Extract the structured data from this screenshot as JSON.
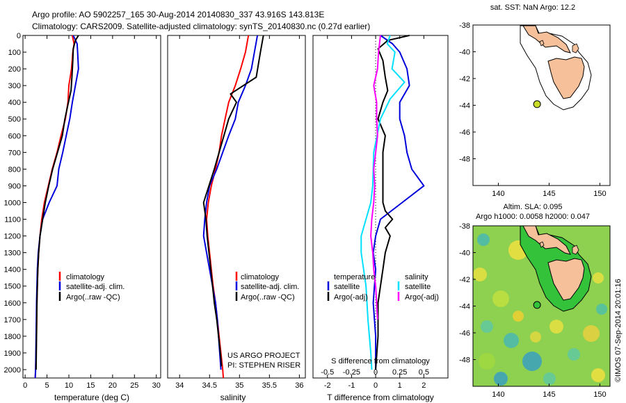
{
  "header": {
    "line1": "Argo profile: AO 5902257_165 30-Aug-2014 20140830_337 43.916S 143.813E",
    "line2": "Climatology: CARS2009. Satellite-adjusted climatology: synTS_20140830.nc (0.27d earlier)"
  },
  "credits": {
    "project": "US ARGO PROJECT",
    "pi": "PI: STEPHEN RISER",
    "timestamp": "©IMOS 07-Sep-2014 20:01:16"
  },
  "colors": {
    "climatology": "#ff0000",
    "satellite": "#0000dd",
    "argo": "#000000",
    "sal_satellite": "#00e0ff",
    "sal_argo": "#ff00ff",
    "land": "#f5c09a",
    "float": "#c8dc28"
  },
  "chart_data": [
    {
      "type": "line",
      "name": "temperature-panel",
      "xlabel": "temperature (deg C)",
      "ylabel": "",
      "xlim": [
        -0.5,
        31
      ],
      "ylim": [
        2050,
        0
      ],
      "xticks": [
        0,
        5,
        10,
        15,
        20,
        25,
        30
      ],
      "yticks": [
        0,
        100,
        200,
        300,
        400,
        500,
        600,
        700,
        800,
        900,
        1000,
        1100,
        1200,
        1300,
        1400,
        1500,
        1600,
        1700,
        1800,
        1900,
        2000
      ],
      "legend": [
        "climatology",
        "satellite-adj. clim.",
        "Argo(..raw -QC)"
      ],
      "series": [
        {
          "name": "climatology",
          "color": "#ff0000",
          "points": [
            [
              10.8,
              0
            ],
            [
              11.2,
              50
            ],
            [
              10.9,
              100
            ],
            [
              10.6,
              200
            ],
            [
              10.0,
              300
            ],
            [
              9.8,
              400
            ],
            [
              9.2,
              500
            ],
            [
              8.2,
              600
            ],
            [
              7.3,
              700
            ],
            [
              6.2,
              800
            ],
            [
              5.3,
              900
            ],
            [
              4.4,
              1000
            ],
            [
              3.8,
              1100
            ],
            [
              3.4,
              1200
            ],
            [
              3.1,
              1300
            ],
            [
              2.9,
              1400
            ],
            [
              2.8,
              1500
            ],
            [
              2.7,
              1600
            ],
            [
              2.6,
              1800
            ],
            [
              2.4,
              2000
            ],
            [
              2.3,
              2050
            ]
          ]
        },
        {
          "name": "satellite-adj. clim.",
          "color": "#0000dd",
          "points": [
            [
              11.0,
              0
            ],
            [
              11.9,
              50
            ],
            [
              12.0,
              100
            ],
            [
              12.2,
              200
            ],
            [
              11.5,
              300
            ],
            [
              10.8,
              400
            ],
            [
              10.2,
              500
            ],
            [
              9.4,
              600
            ],
            [
              8.6,
              700
            ],
            [
              7.7,
              800
            ],
            [
              7.3,
              900
            ],
            [
              5.5,
              1000
            ],
            [
              4.0,
              1100
            ],
            [
              3.4,
              1200
            ],
            [
              3.0,
              1300
            ],
            [
              2.8,
              1400
            ],
            [
              2.7,
              1500
            ],
            [
              2.6,
              1600
            ],
            [
              2.5,
              1800
            ],
            [
              2.4,
              2000
            ],
            [
              2.3,
              2050
            ]
          ]
        },
        {
          "name": "Argo(..raw -QC)",
          "color": "#000000",
          "points": [
            [
              12.2,
              0
            ],
            [
              11.5,
              30
            ],
            [
              11.0,
              80
            ],
            [
              10.9,
              150
            ],
            [
              10.7,
              250
            ],
            [
              10.5,
              330
            ],
            [
              9.9,
              400
            ],
            [
              9.1,
              500
            ],
            [
              8.5,
              600
            ],
            [
              7.4,
              700
            ],
            [
              6.3,
              800
            ],
            [
              5.4,
              900
            ],
            [
              4.6,
              1000
            ],
            [
              4.0,
              1100
            ],
            [
              3.4,
              1200
            ],
            [
              3.1,
              1300
            ],
            [
              2.9,
              1400
            ],
            [
              2.8,
              1500
            ],
            [
              2.7,
              1600
            ],
            [
              2.6,
              1800
            ],
            [
              2.5,
              2000
            ]
          ]
        }
      ]
    },
    {
      "type": "line",
      "name": "salinity-panel",
      "xlabel": "salinity",
      "ylabel": "",
      "xlim": [
        33.8,
        36.1
      ],
      "ylim": [
        2050,
        0
      ],
      "xticks": [
        34,
        34.5,
        35,
        35.5,
        36
      ],
      "legend": [
        "climatology",
        "satellite-adj. clim.",
        "Argo(..raw -QC)"
      ],
      "series": [
        {
          "name": "climatology",
          "color": "#ff0000",
          "points": [
            [
              35.15,
              0
            ],
            [
              35.1,
              100
            ],
            [
              35.02,
              200
            ],
            [
              34.93,
              300
            ],
            [
              34.82,
              400
            ],
            [
              34.76,
              500
            ],
            [
              34.7,
              600
            ],
            [
              34.66,
              700
            ],
            [
              34.6,
              800
            ],
            [
              34.53,
              900
            ],
            [
              34.48,
              1000
            ],
            [
              34.45,
              1100
            ],
            [
              34.47,
              1200
            ],
            [
              34.5,
              1300
            ],
            [
              34.53,
              1400
            ],
            [
              34.56,
              1500
            ],
            [
              34.6,
              1600
            ],
            [
              34.63,
              1700
            ],
            [
              34.66,
              1800
            ],
            [
              34.69,
              1900
            ],
            [
              34.72,
              2000
            ],
            [
              34.73,
              2050
            ]
          ]
        },
        {
          "name": "satellite-adj. clim.",
          "color": "#0000dd",
          "points": [
            [
              35.3,
              0
            ],
            [
              35.25,
              100
            ],
            [
              35.2,
              200
            ],
            [
              35.1,
              300
            ],
            [
              34.98,
              400
            ],
            [
              34.93,
              500
            ],
            [
              34.82,
              600
            ],
            [
              34.72,
              700
            ],
            [
              34.62,
              800
            ],
            [
              34.5,
              900
            ],
            [
              34.45,
              1000
            ],
            [
              34.42,
              1100
            ],
            [
              34.4,
              1200
            ],
            [
              34.45,
              1300
            ],
            [
              34.5,
              1400
            ],
            [
              34.55,
              1500
            ],
            [
              34.6,
              1600
            ],
            [
              34.63,
              1700
            ],
            [
              34.65,
              1800
            ],
            [
              34.67,
              1900
            ],
            [
              34.69,
              2000
            ]
          ]
        },
        {
          "name": "Argo(..raw -QC)",
          "color": "#000000",
          "points": [
            [
              35.4,
              0
            ],
            [
              35.35,
              100
            ],
            [
              35.28,
              250
            ],
            [
              34.85,
              350
            ],
            [
              34.95,
              400
            ],
            [
              34.82,
              500
            ],
            [
              34.74,
              600
            ],
            [
              34.66,
              700
            ],
            [
              34.58,
              800
            ],
            [
              34.49,
              900
            ],
            [
              34.4,
              1000
            ],
            [
              34.44,
              1100
            ],
            [
              34.46,
              1200
            ],
            [
              34.49,
              1300
            ],
            [
              34.52,
              1400
            ],
            [
              34.55,
              1500
            ],
            [
              34.58,
              1600
            ],
            [
              34.62,
              1700
            ],
            [
              34.65,
              1800
            ],
            [
              34.68,
              1900
            ],
            [
              34.7,
              1980
            ]
          ]
        }
      ]
    },
    {
      "type": "line",
      "name": "difference-panel",
      "xlabel": "T difference from climatology",
      "top_axis_label": "S difference from climatology",
      "xlim": [
        -2.6,
        3.0
      ],
      "ylim": [
        2050,
        0
      ],
      "xticks": [
        -2,
        -1,
        0,
        1,
        2
      ],
      "s_ticks": [
        "-0.5",
        "-0.25",
        "0",
        "0.25",
        "0.5"
      ],
      "legend_titles": [
        "temperature",
        "salinity"
      ],
      "legend": [
        "satellite",
        "Argo(-adj)",
        "satellite",
        "Argo(-adj)"
      ],
      "series": [
        {
          "name": "temperature satellite",
          "color": "#0000dd",
          "points": [
            [
              0.2,
              0
            ],
            [
              0.7,
              50
            ],
            [
              1.0,
              100
            ],
            [
              1.3,
              200
            ],
            [
              1.4,
              300
            ],
            [
              1.0,
              400
            ],
            [
              1.0,
              500
            ],
            [
              1.2,
              600
            ],
            [
              1.3,
              700
            ],
            [
              1.5,
              800
            ],
            [
              2.0,
              900
            ],
            [
              1.1,
              1000
            ],
            [
              0.2,
              1100
            ],
            [
              0.0,
              1200
            ],
            [
              -0.1,
              1300
            ],
            [
              0.0,
              1400
            ],
            [
              -0.1,
              1600
            ],
            [
              0.0,
              1800
            ],
            [
              0.0,
              2000
            ]
          ]
        },
        {
          "name": "temperature Argo(-adj)",
          "color": "#000000",
          "points": [
            [
              1.4,
              0
            ],
            [
              0.5,
              30
            ],
            [
              0.1,
              80
            ],
            [
              0.3,
              150
            ],
            [
              0.4,
              250
            ],
            [
              0.5,
              330
            ],
            [
              0.3,
              400
            ],
            [
              0.1,
              500
            ],
            [
              0.4,
              600
            ],
            [
              0.3,
              700
            ],
            [
              0.3,
              800
            ],
            [
              0.3,
              900
            ],
            [
              0.3,
              1000
            ],
            [
              0.4,
              1050
            ],
            [
              0.7,
              1100
            ],
            [
              0.4,
              1150
            ],
            [
              0.6,
              1200
            ],
            [
              0.4,
              1300
            ],
            [
              0.3,
              1400
            ],
            [
              0.2,
              1500
            ],
            [
              0.1,
              1600
            ],
            [
              0.1,
              1800
            ],
            [
              0.0,
              2000
            ]
          ]
        },
        {
          "name": "salinity satellite",
          "color": "#00e0ff",
          "points": [
            [
              0.15,
              0
            ],
            [
              0.12,
              50
            ],
            [
              0.2,
              100
            ],
            [
              0.17,
              200
            ],
            [
              0.3,
              280
            ],
            [
              0.15,
              380
            ],
            [
              0.05,
              500
            ],
            [
              -0.02,
              700
            ],
            [
              -0.03,
              900
            ],
            [
              -0.05,
              1000
            ],
            [
              -0.1,
              1100
            ],
            [
              -0.15,
              1200
            ],
            [
              -0.15,
              1300
            ],
            [
              -0.1,
              1500
            ],
            [
              -0.08,
              1700
            ],
            [
              -0.05,
              1900
            ],
            [
              -0.04,
              2000
            ]
          ]
        },
        {
          "name": "salinity Argo(-adj)",
          "color": "#ff00ff",
          "points": [
            [
              0.05,
              0
            ],
            [
              0.03,
              100
            ],
            [
              0.02,
              200
            ],
            [
              -0.02,
              300
            ],
            [
              0.01,
              400
            ],
            [
              0.01,
              500
            ],
            [
              0.02,
              600
            ],
            [
              0.0,
              700
            ],
            [
              -0.02,
              800
            ],
            [
              -0.01,
              900
            ],
            [
              -0.02,
              1000
            ],
            [
              -0.04,
              1100
            ],
            [
              -0.05,
              1200
            ],
            [
              -0.03,
              1300
            ],
            [
              -0.02,
              1400
            ],
            [
              0.0,
              1500
            ],
            [
              0.01,
              1600
            ],
            [
              0.02,
              1700
            ]
          ]
        }
      ]
    },
    {
      "type": "map",
      "name": "sst-map",
      "title": "sat. SST: NaN Argo: 12.2",
      "lon_range": [
        137.5,
        151
      ],
      "lat_range": [
        -50,
        -38
      ],
      "xticks": [
        140,
        145,
        150
      ],
      "yticks": [
        -38,
        -40,
        -42,
        -44,
        -46,
        -48
      ],
      "float_position": [
        143.813,
        -43.916
      ]
    },
    {
      "type": "heatmap",
      "name": "sla-map",
      "title_line1": "Altim. SLA: 0.095",
      "title_line2": "Argo h1000: 0.0058 h2000: 0.047",
      "lon_range": [
        137.5,
        151
      ],
      "lat_range": [
        -50,
        -38
      ],
      "xticks": [
        140,
        145,
        150
      ],
      "yticks": [
        -38,
        -40,
        -42,
        -44,
        -46,
        -48
      ],
      "float_position": [
        143.813,
        -43.916
      ]
    }
  ]
}
